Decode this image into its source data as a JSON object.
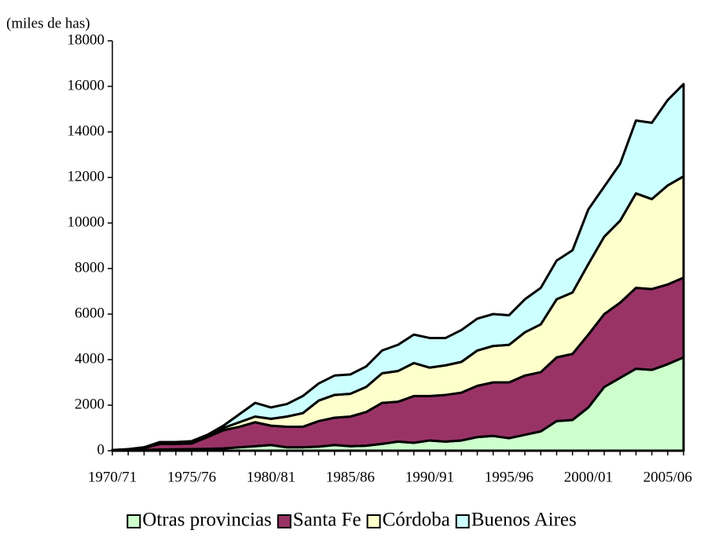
{
  "chart_data": {
    "type": "stacked_area",
    "y_label": "(miles de has)",
    "categories": [
      "1970/71",
      null,
      null,
      null,
      null,
      "1975/76",
      null,
      null,
      null,
      null,
      "1980/81",
      null,
      null,
      null,
      null,
      "1985/86",
      null,
      null,
      null,
      null,
      "1990/91",
      null,
      null,
      null,
      null,
      "1995/96",
      null,
      null,
      null,
      null,
      "2000/01",
      null,
      null,
      null,
      null,
      "2005/06",
      null
    ],
    "series": [
      {
        "name": "Otras provincias",
        "color": "#ccffcc",
        "values": [
          0,
          10,
          30,
          50,
          60,
          70,
          80,
          100,
          150,
          200,
          250,
          150,
          150,
          180,
          250,
          200,
          220,
          300,
          400,
          350,
          450,
          400,
          450,
          600,
          650,
          550,
          700,
          850,
          1300,
          1350,
          1900,
          2800,
          3200,
          3600,
          3550,
          3800,
          4100
        ]
      },
      {
        "name": "Santa Fe",
        "color": "#993366",
        "values": [
          20,
          50,
          90,
          250,
          240,
          250,
          520,
          800,
          900,
          1050,
          850,
          900,
          900,
          1120,
          1200,
          1300,
          1480,
          1800,
          1750,
          2050,
          1950,
          2050,
          2100,
          2250,
          2350,
          2450,
          2600,
          2600,
          2800,
          2900,
          3200,
          3200,
          3300,
          3550,
          3550,
          3500,
          3500
        ]
      },
      {
        "name": "Córdoba",
        "color": "#ffffcc",
        "values": [
          0,
          0,
          10,
          50,
          50,
          60,
          50,
          100,
          200,
          250,
          300,
          450,
          600,
          900,
          1000,
          1000,
          1100,
          1300,
          1350,
          1450,
          1250,
          1300,
          1350,
          1550,
          1600,
          1650,
          1900,
          2100,
          2550,
          2700,
          3100,
          3400,
          3600,
          4150,
          3950,
          4350,
          4450
        ]
      },
      {
        "name": "Buenos Aires",
        "color": "#ccffff",
        "values": [
          10,
          10,
          20,
          30,
          30,
          40,
          50,
          100,
          350,
          600,
          500,
          550,
          750,
          750,
          850,
          850,
          900,
          1000,
          1150,
          1250,
          1300,
          1200,
          1400,
          1400,
          1400,
          1300,
          1450,
          1600,
          1700,
          1850,
          2400,
          2200,
          2500,
          3200,
          3350,
          3750,
          4050
        ]
      }
    ],
    "ylim": [
      0,
      18000
    ],
    "yticks": [
      0,
      2000,
      4000,
      6000,
      8000,
      10000,
      12000,
      14000,
      16000,
      18000
    ],
    "grid": false,
    "legend": "bottom"
  }
}
